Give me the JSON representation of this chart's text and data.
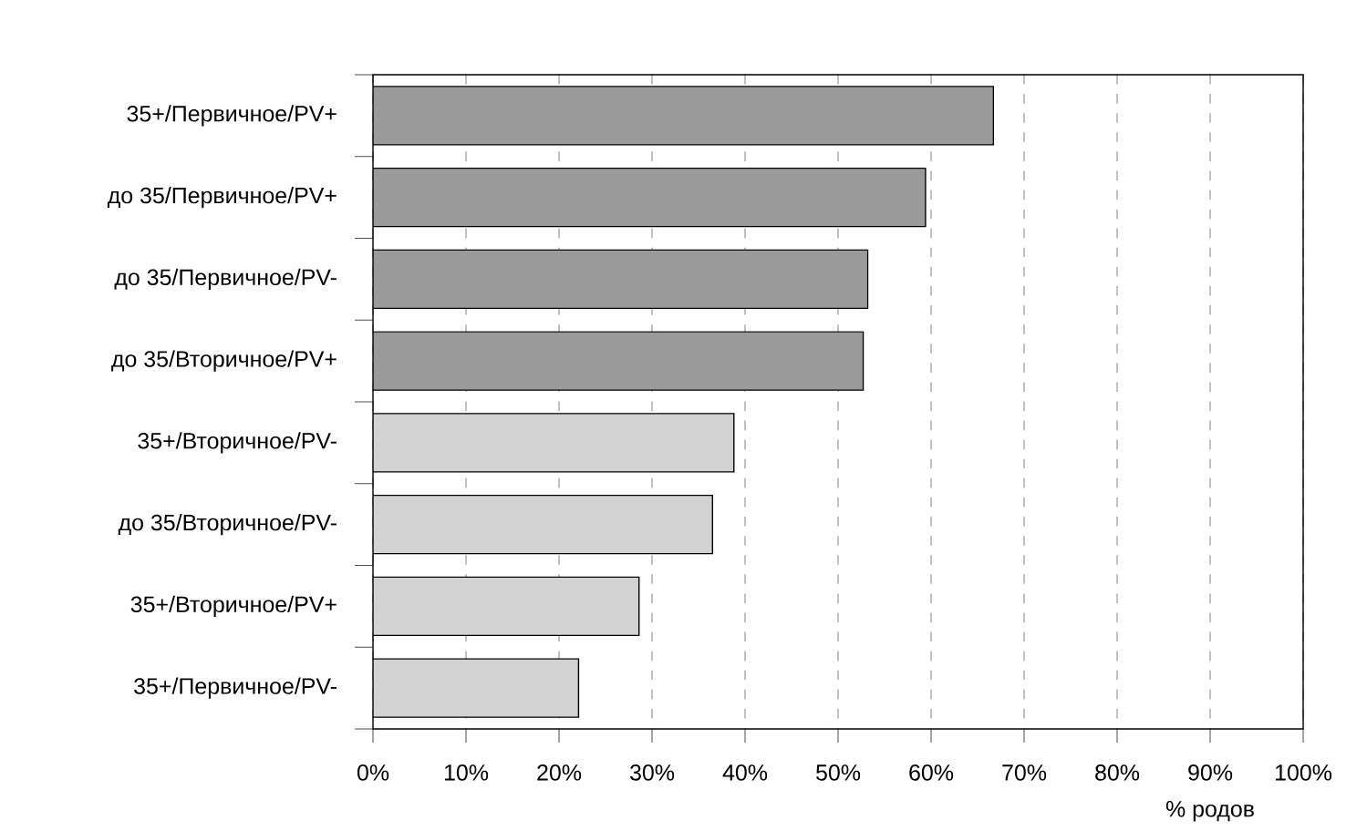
{
  "chart_data": {
    "type": "bar",
    "orientation": "horizontal",
    "xlabel": "% родов",
    "categories": [
      "35+/Первичное/PV+",
      "до 35/Первичное/PV+",
      "до 35/Первичное/PV-",
      "до 35/Вторичное/PV+",
      "35+/Вторичное/PV-",
      "до 35/Вторичное/PV-",
      "35+/Вторичное/PV+",
      "35+/Первичное/PV-"
    ],
    "values": [
      66.7,
      59.4,
      53.2,
      52.7,
      38.8,
      36.5,
      28.6,
      22.1
    ],
    "colors": [
      "#9a9a9a",
      "#9a9a9a",
      "#9a9a9a",
      "#9a9a9a",
      "#d2d2d2",
      "#d2d2d2",
      "#d2d2d2",
      "#d2d2d2"
    ],
    "xlim": [
      0,
      100
    ],
    "xticks": [
      {
        "value": 0,
        "label": "0%"
      },
      {
        "value": 10,
        "label": "10%"
      },
      {
        "value": 20,
        "label": "20%"
      },
      {
        "value": 30,
        "label": "30%"
      },
      {
        "value": 40,
        "label": "40%"
      },
      {
        "value": 50,
        "label": "50%"
      },
      {
        "value": 60,
        "label": "60%"
      },
      {
        "value": 70,
        "label": "70%"
      },
      {
        "value": 80,
        "label": "80%"
      },
      {
        "value": 90,
        "label": "90%"
      },
      {
        "value": 100,
        "label": "100%"
      }
    ],
    "grid": "x"
  }
}
